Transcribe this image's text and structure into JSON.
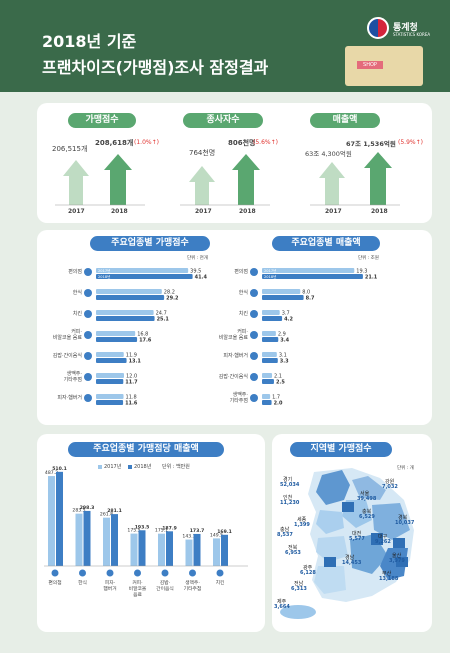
{
  "header": {
    "title1": "2018년 기준",
    "title2": "프랜차이즈(가맹점)조사 잠정결과",
    "logo_text": "통계청",
    "logo_sub": "STATISTICS KOREA",
    "shop_label": "SHOP"
  },
  "summary": {
    "year_labels": [
      "2017",
      "2018"
    ],
    "items": [
      {
        "title": "가맹점수",
        "v2017": "206,515개",
        "v2018": "208,618개",
        "change": "(1.0%↑)"
      },
      {
        "title": "종사자수",
        "v2017": "764천명",
        "v2018": "806천명",
        "change": "(5.6%↑)"
      },
      {
        "title": "매출액",
        "v2017": "63조 4,300억원",
        "v2018": "67조 1,536억원",
        "change": "(5.9%↑)"
      }
    ]
  },
  "chart_data": [
    {
      "type": "bar",
      "title": "주요업종별 가맹점수",
      "unit": "단위 : 천개",
      "categories": [
        "편의점",
        "한식",
        "치킨",
        "커피·비알코올 음료",
        "김밥·간이음식",
        "생맥주·기타주점",
        "피자·햄버거"
      ],
      "category_lines": [
        [
          "편의점"
        ],
        [
          "한식"
        ],
        [
          "치킨"
        ],
        [
          "커피·",
          "비알코올 음료"
        ],
        [
          "김밥·간이음식"
        ],
        [
          "생맥주·",
          "기타주점"
        ],
        [
          "피자·햄버거"
        ]
      ],
      "series": [
        {
          "name": "2017년",
          "values": [
            39.5,
            28.2,
            24.7,
            16.8,
            11.9,
            12.0,
            11.8
          ]
        },
        {
          "name": "2018년",
          "values": [
            41.4,
            29.2,
            25.1,
            17.6,
            13.1,
            11.7,
            11.6
          ]
        }
      ],
      "xlim": [
        0,
        45
      ]
    },
    {
      "type": "bar",
      "title": "주요업종별 매출액",
      "unit": "단위 : 조원",
      "categories": [
        "편의점",
        "한식",
        "치킨",
        "커피·비알코올 음료",
        "피자·햄버거",
        "김밥·간이음식",
        "생맥주·기타주점"
      ],
      "category_lines": [
        [
          "편의점"
        ],
        [
          "한식"
        ],
        [
          "치킨"
        ],
        [
          "커피·",
          "비알코올 음료"
        ],
        [
          "피자·햄버거"
        ],
        [
          "김밥·간이음식"
        ],
        [
          "생맥주·",
          "기타주점"
        ]
      ],
      "series": [
        {
          "name": "2017년",
          "values": [
            19.3,
            8.0,
            3.7,
            2.9,
            3.1,
            2.1,
            1.7
          ]
        },
        {
          "name": "2018년",
          "values": [
            21.1,
            8.7,
            4.2,
            3.4,
            3.3,
            2.5,
            2.0
          ]
        }
      ],
      "xlim": [
        0,
        23
      ]
    },
    {
      "type": "bar",
      "title": "주요업종별 가맹점당 매출액",
      "unit": "단위 : 백만원",
      "legend": [
        "2017년",
        "2018년"
      ],
      "categories": [
        "편의점",
        "한식",
        "피자·햄버거",
        "커피·비알코올 음료",
        "김밥·간이음식",
        "생맥주·기타주점",
        "치킨"
      ],
      "category_lines": [
        [
          "편의점"
        ],
        [
          "한식"
        ],
        [
          "피자·",
          "햄버거"
        ],
        [
          "커피·",
          "비알코올",
          "음료"
        ],
        [
          "김밥·",
          "간이음식"
        ],
        [
          "생맥주·",
          "기타주점"
        ],
        [
          "치킨"
        ]
      ],
      "series": [
        {
          "name": "2017년",
          "values": [
            487.2,
            283.5,
            261.8,
            175.5,
            175.1,
            143.1,
            149.5
          ]
        },
        {
          "name": "2018년",
          "values": [
            510.1,
            298.3,
            281.1,
            193.5,
            187.9,
            173.7,
            169.1
          ]
        }
      ],
      "ylim": [
        0,
        520
      ]
    },
    {
      "type": "map",
      "title": "지역별 가맹점수",
      "unit": "단위 : 개",
      "regions": [
        {
          "name": "경기",
          "value": "52,034"
        },
        {
          "name": "강원",
          "value": "7,032"
        },
        {
          "name": "인천",
          "value": "11,230"
        },
        {
          "name": "서울",
          "value": "39,498"
        },
        {
          "name": "충북",
          "value": "6,529"
        },
        {
          "name": "세종",
          "value": "1,399"
        },
        {
          "name": "경북",
          "value": "10,037"
        },
        {
          "name": "충남",
          "value": "8,537"
        },
        {
          "name": "대전",
          "value": "5,577"
        },
        {
          "name": "대구",
          "value": "9,262"
        },
        {
          "name": "전북",
          "value": "6,953"
        },
        {
          "name": "울산",
          "value": "3,979"
        },
        {
          "name": "경남",
          "value": "14,453"
        },
        {
          "name": "광주",
          "value": "6,128"
        },
        {
          "name": "부산",
          "value": "13,188"
        },
        {
          "name": "전남",
          "value": "6,313"
        },
        {
          "name": "제주",
          "value": "3,664"
        }
      ]
    }
  ],
  "colors": {
    "green_dark": "#3a6a4a",
    "pill_green": "#5aa770",
    "pill_blue": "#3d7ec4",
    "bar_light": "#9dc7ea",
    "bar_dark": "#3d7ec4",
    "arrow_light": "#bfdcc3",
    "arrow_dark": "#5aa770",
    "up_red": "#e0322e"
  }
}
